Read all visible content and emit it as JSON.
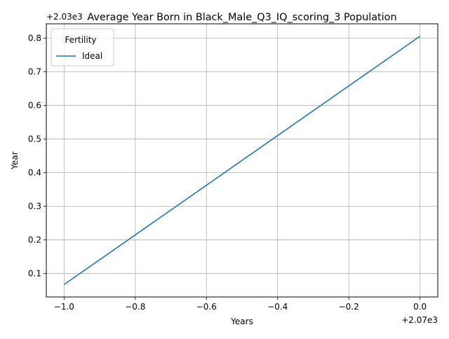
{
  "chart_data": {
    "type": "line",
    "title": "Average Year Born in Black_Male_Q3_IQ_scoring_3 Population",
    "xlabel": "Years",
    "ylabel": "Year",
    "x_offset_label": "+2.07e3",
    "y_offset_label": "+2.03e3",
    "xlim": [
      -1.05,
      0.05
    ],
    "ylim": [
      0.03,
      0.843
    ],
    "x_ticks": [
      -1.0,
      -0.8,
      -0.6,
      -0.4,
      -0.2,
      0.0
    ],
    "x_tick_labels": [
      "−1.0",
      "−0.8",
      "−0.6",
      "−0.4",
      "−0.2",
      "0.0"
    ],
    "y_ticks": [
      0.1,
      0.2,
      0.3,
      0.4,
      0.5,
      0.6,
      0.7,
      0.8
    ],
    "y_tick_labels": [
      "0.1",
      "0.2",
      "0.3",
      "0.4",
      "0.5",
      "0.6",
      "0.7",
      "0.8"
    ],
    "grid": true,
    "legend": {
      "title": "Fertility",
      "placement": "upper-left"
    },
    "series": [
      {
        "name": "Ideal",
        "color": "#1f77b4",
        "x": [
          -1.0,
          0.0
        ],
        "y": [
          0.067,
          0.806
        ]
      }
    ]
  }
}
